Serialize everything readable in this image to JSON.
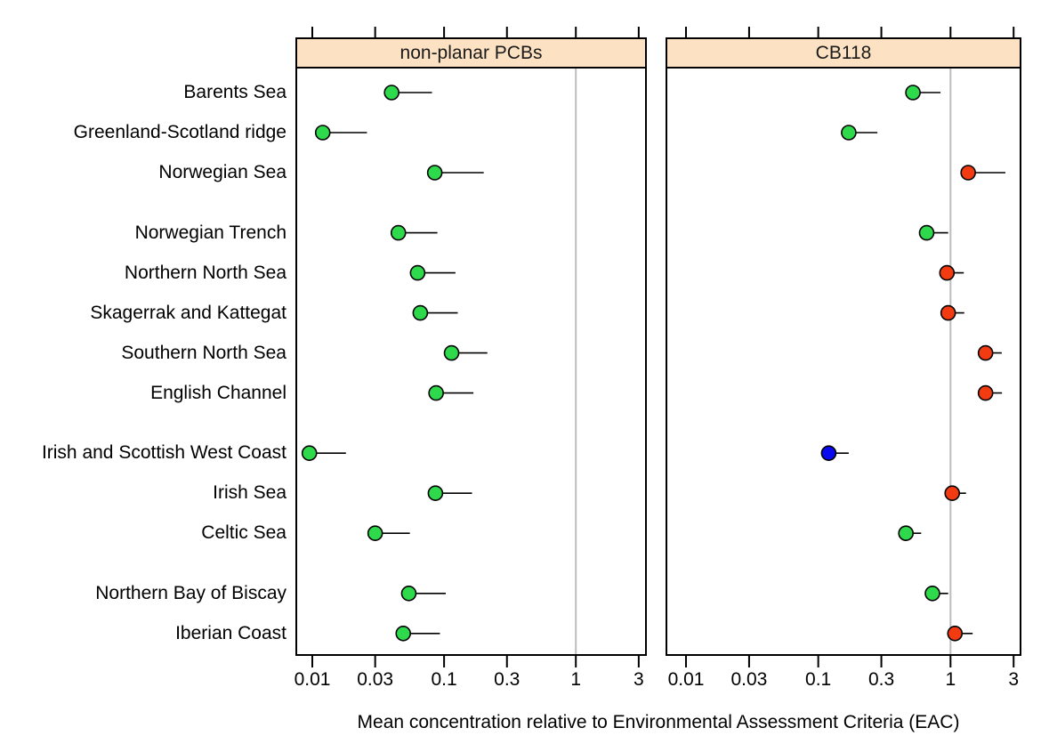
{
  "figure": {
    "kind": "trellis-dot-plot",
    "xlabel": "Mean concentration relative to Environmental Assessment Criteria (EAC)"
  },
  "chart_data": {
    "type": "scatter",
    "subtype": "dotplot-with-upper-confidence-whiskers",
    "orientation": "horizontal",
    "x_scale": "log10",
    "xlim": [
      0.0075,
      3.6
    ],
    "x_ticks": [
      0.01,
      0.03,
      0.1,
      0.3,
      1,
      3
    ],
    "x_tick_labels": [
      "0.01",
      "0.03",
      "0.1",
      "0.3",
      "1",
      "3"
    ],
    "reference_line_x": 1,
    "reference_line_color": "#bdbdbd",
    "grid": "off",
    "legend": "none",
    "xlabel": "Mean concentration relative to Environmental Assessment Criteria (EAC)",
    "strip_fill": "#fce1c2",
    "status_colors": {
      "green": "#2fd94c",
      "red": "#f23b10",
      "blue": "#0a0aee"
    },
    "categories": [
      "Barents Sea",
      "Greenland-Scotland ridge",
      "Norwegian Sea",
      "Norwegian Trench",
      "Northern North Sea",
      "Skagerrak and Kattegat",
      "Southern North Sea",
      "English Channel",
      "Irish and Scottish West Coast",
      "Irish Sea",
      "Celtic Sea",
      "Northern Bay of Biscay",
      "Iberian Coast"
    ],
    "category_groups": [
      3,
      5,
      3,
      2
    ],
    "panels": [
      {
        "title": "non-planar PCBs",
        "points": [
          {
            "region": "Barents Sea",
            "mean": 0.04,
            "upper": 0.081,
            "status": "green"
          },
          {
            "region": "Greenland-Scotland ridge",
            "mean": 0.012,
            "upper": 0.026,
            "status": "green"
          },
          {
            "region": "Norwegian Sea",
            "mean": 0.085,
            "upper": 0.2,
            "status": "green"
          },
          {
            "region": "Norwegian Trench",
            "mean": 0.045,
            "upper": 0.089,
            "status": "green"
          },
          {
            "region": "Northern North Sea",
            "mean": 0.063,
            "upper": 0.122,
            "status": "green"
          },
          {
            "region": "Skagerrak and Kattegat",
            "mean": 0.066,
            "upper": 0.127,
            "status": "green"
          },
          {
            "region": "Southern North Sea",
            "mean": 0.114,
            "upper": 0.213,
            "status": "green"
          },
          {
            "region": "English Channel",
            "mean": 0.087,
            "upper": 0.167,
            "status": "green"
          },
          {
            "region": "Irish and Scottish West Coast",
            "mean": 0.0095,
            "upper": 0.018,
            "status": "green"
          },
          {
            "region": "Irish Sea",
            "mean": 0.086,
            "upper": 0.163,
            "status": "green"
          },
          {
            "region": "Celtic Sea",
            "mean": 0.03,
            "upper": 0.055,
            "status": "green"
          },
          {
            "region": "Northern Bay of Biscay",
            "mean": 0.054,
            "upper": 0.103,
            "status": "green"
          },
          {
            "region": "Iberian Coast",
            "mean": 0.049,
            "upper": 0.093,
            "status": "green"
          }
        ]
      },
      {
        "title": "CB118",
        "points": [
          {
            "region": "Barents Sea",
            "mean": 0.52,
            "upper": 0.84,
            "status": "green"
          },
          {
            "region": "Greenland-Scotland ridge",
            "mean": 0.17,
            "upper": 0.28,
            "status": "green"
          },
          {
            "region": "Norwegian Sea",
            "mean": 1.36,
            "upper": 2.6,
            "status": "red"
          },
          {
            "region": "Norwegian Trench",
            "mean": 0.66,
            "upper": 0.96,
            "status": "green"
          },
          {
            "region": "Northern North Sea",
            "mean": 0.94,
            "upper": 1.26,
            "status": "red"
          },
          {
            "region": "Skagerrak and Kattegat",
            "mean": 0.96,
            "upper": 1.27,
            "status": "red"
          },
          {
            "region": "Southern North Sea",
            "mean": 1.84,
            "upper": 2.44,
            "status": "red"
          },
          {
            "region": "English Channel",
            "mean": 1.84,
            "upper": 2.45,
            "status": "red"
          },
          {
            "region": "Irish and Scottish West Coast",
            "mean": 0.12,
            "upper": 0.17,
            "status": "blue"
          },
          {
            "region": "Irish Sea",
            "mean": 1.03,
            "upper": 1.31,
            "status": "red"
          },
          {
            "region": "Celtic Sea",
            "mean": 0.46,
            "upper": 0.6,
            "status": "green"
          },
          {
            "region": "Northern Bay of Biscay",
            "mean": 0.73,
            "upper": 0.96,
            "status": "green"
          },
          {
            "region": "Iberian Coast",
            "mean": 1.08,
            "upper": 1.47,
            "status": "red"
          }
        ]
      }
    ]
  }
}
